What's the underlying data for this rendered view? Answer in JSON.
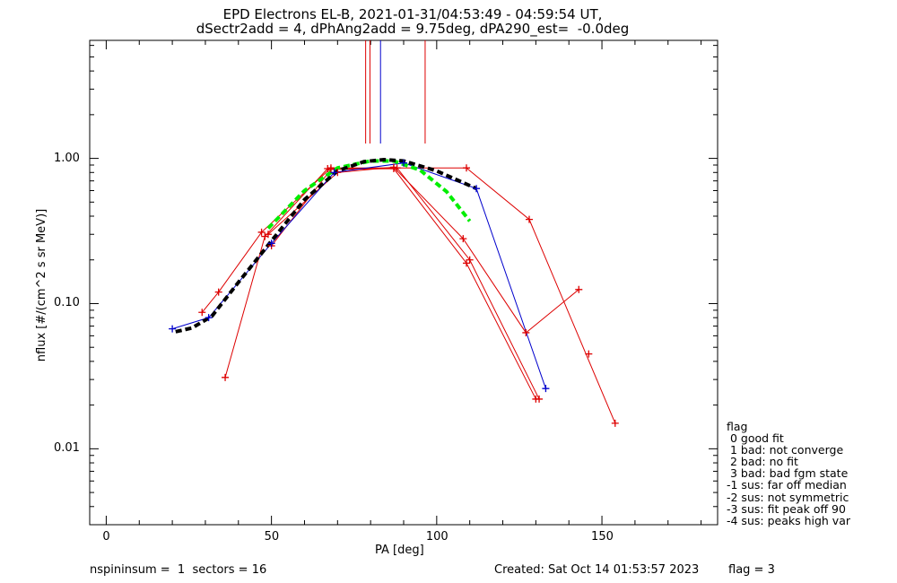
{
  "header": {
    "title_line1": "EPD Electrons EL-B, 2021-01-31/04:53:49 - 04:59:54 UT,",
    "title_line2": "dSectr2add = 4, dPhAng2add = 9.75deg, dPA290_est=  -0.0deg"
  },
  "footer": {
    "left": "nspininsum =  1  sectors = 16",
    "created": "Created: Sat Oct 14 01:53:57 2023",
    "flag": "flag = 3"
  },
  "legend": {
    "title": "flag",
    "items": [
      " 0 good fit",
      " 1 bad: not converge",
      " 2 bad: no fit",
      " 3 bad: bad fgm state",
      "-1 sus: far off median",
      "-2 sus: not symmetric",
      "-3 sus: fit peak off 90",
      "-4 sus: peaks high var"
    ]
  },
  "colors": {
    "red": "#dd0000",
    "blue": "#0000cc",
    "green": "#00ee00",
    "black": "#000000"
  },
  "chart_data": {
    "type": "line",
    "xlabel": "PA [deg]",
    "ylabel": "nflux [#/(cm^2 s sr MeV)]",
    "xlim": [
      -5,
      185
    ],
    "ylim": [
      0.003,
      6.5
    ],
    "ylog": true,
    "xticks": [
      0,
      50,
      100,
      150
    ],
    "xticklabels": [
      "0",
      "50",
      "100",
      "150"
    ],
    "yticks": [
      0.01,
      0.1,
      1.0
    ],
    "yticklabels": [
      "0.01",
      "0.10",
      "1.00"
    ],
    "series": [
      {
        "color": "red",
        "role": "red-a",
        "points": [
          [
            29,
            0.087
          ],
          [
            34,
            0.12
          ],
          [
            47,
            0.31
          ],
          [
            68,
            0.86
          ],
          [
            109,
            0.86
          ],
          [
            128,
            0.38
          ],
          [
            154,
            0.015
          ]
        ]
      },
      {
        "color": "red",
        "role": "red-b",
        "points": [
          [
            36,
            0.031
          ],
          [
            48,
            0.29
          ],
          [
            67,
            0.85
          ],
          [
            88,
            0.86
          ],
          [
            110,
            0.2
          ],
          [
            131,
            0.022
          ]
        ]
      },
      {
        "color": "red",
        "role": "red-c",
        "points": [
          [
            49,
            0.3
          ],
          [
            70,
            0.8
          ],
          [
            87,
            0.87
          ],
          [
            108,
            0.28
          ],
          [
            127,
            0.063
          ],
          [
            143,
            0.125
          ]
        ]
      },
      {
        "color": "red",
        "role": "red-d",
        "points": [
          [
            50,
            0.25
          ],
          [
            68,
            0.84
          ],
          [
            87,
            0.85
          ],
          [
            109,
            0.19
          ],
          [
            130,
            0.022
          ]
        ]
      },
      {
        "color": "red",
        "role": "red-e",
        "points": [
          [
            146,
            0.045
          ]
        ]
      },
      {
        "color": "blue",
        "role": "blue",
        "points": [
          [
            20,
            0.067
          ],
          [
            31,
            0.08
          ],
          [
            50,
            0.26
          ],
          [
            69,
            0.8
          ],
          [
            90,
            0.93
          ],
          [
            112,
            0.62
          ],
          [
            133,
            0.026
          ]
        ]
      },
      {
        "color": "green",
        "role": "fit-green",
        "dashed": true,
        "points": [
          [
            49,
            0.33
          ],
          [
            60,
            0.6
          ],
          [
            70,
            0.86
          ],
          [
            80,
            0.96
          ],
          [
            87,
            0.96
          ],
          [
            95,
            0.83
          ],
          [
            103,
            0.59
          ],
          [
            110,
            0.37
          ]
        ]
      },
      {
        "color": "black",
        "role": "fit-black",
        "dashed": true,
        "points": [
          [
            21,
            0.064
          ],
          [
            26,
            0.068
          ],
          [
            32,
            0.082
          ],
          [
            40,
            0.14
          ],
          [
            50,
            0.27
          ],
          [
            60,
            0.52
          ],
          [
            70,
            0.82
          ],
          [
            78,
            0.95
          ],
          [
            84,
            0.98
          ],
          [
            90,
            0.96
          ],
          [
            100,
            0.82
          ],
          [
            112,
            0.62
          ]
        ]
      }
    ],
    "vlines": [
      {
        "x": 78.5,
        "color": "red"
      },
      {
        "x": 79.8,
        "color": "red"
      },
      {
        "x": 83.0,
        "color": "blue"
      },
      {
        "x": 96.5,
        "color": "red"
      }
    ]
  }
}
